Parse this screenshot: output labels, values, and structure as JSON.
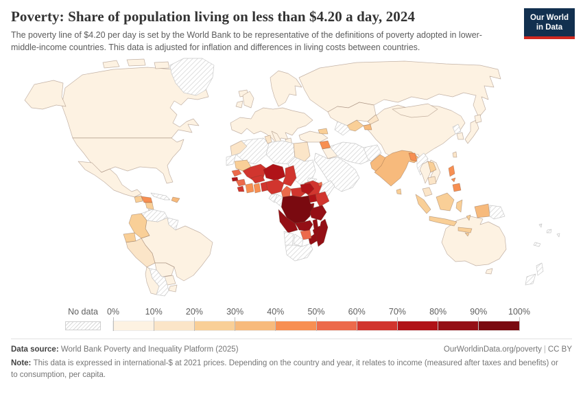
{
  "header": {
    "title": "Poverty: Share of population living on less than $4.20 a day, 2024",
    "subtitle": "The poverty line of $4.20 per day is set by the World Bank to be representative of the definitions of poverty adopted in lower-middle-income countries. This data is adjusted for inflation and differences in living costs between countries."
  },
  "logo": {
    "line1": "Our World",
    "line2": "in Data",
    "bg_color": "#12304F",
    "accent_color": "#D0281F"
  },
  "legend": {
    "no_data_label": "No data"
  },
  "chart_data": {
    "type": "choropleth",
    "title": "Poverty: Share of population living on less than $4.20 a day",
    "year": "2024",
    "unit": "share of population (%)",
    "legend_position": "bottom",
    "bins": [
      "0%",
      "10%",
      "20%",
      "30%",
      "40%",
      "50%",
      "60%",
      "70%",
      "80%",
      "90%",
      "100%"
    ],
    "bin_size_percent": 10,
    "colors": [
      "#FDF2E2",
      "#FBE5C8",
      "#F9CF97",
      "#F7BA7C",
      "#F78F52",
      "#EC6A4B",
      "#D1352E",
      "#B01318",
      "#940F15",
      "#7A0A10"
    ],
    "no_data_style": "diagonal-hatch",
    "regions": {
      "canada": 0,
      "united_states": 0,
      "greenland": "no_data",
      "iceland": 0,
      "mexico": 0,
      "guatemala": 2,
      "honduras": 4,
      "nicaragua": 2,
      "costa_rica_panama": 0,
      "cuba": "no_data",
      "hispaniola": 3,
      "venezuela": "no_data",
      "guyanas": "no_data",
      "colombia": 2,
      "ecuador": 2,
      "peru": 1,
      "brazil": 0,
      "bolivia": 0,
      "paraguay": 0,
      "uruguay": 0,
      "chile": 0,
      "argentina": "no_data",
      "scandinavia": 0,
      "united_kingdom": 0,
      "ireland": 0,
      "europe": 0,
      "italy": 0,
      "greece": 0,
      "russia": 0,
      "kazakhstan": 0,
      "uzbekistan": 2,
      "turkmenistan": "no_data",
      "kyrgyzstan": 1,
      "tajikistan": 3,
      "azerbaijan": 2,
      "turkey": 0,
      "syria": 4,
      "iraq": 0,
      "iran": "no_data",
      "afghanistan": "no_data",
      "arabian_peninsula": "no_data",
      "pakistan": 3,
      "india": 3,
      "bangladesh": 4,
      "sri_lanka": 2,
      "myanmar": "no_data",
      "china": 0,
      "mongolia": 0,
      "north_korea": "no_data",
      "south_korea": 0,
      "japan": 0,
      "taiwan": 1,
      "thailand": 0,
      "vietnam": 0,
      "laos": 2,
      "cambodia": 1,
      "malaysia": 1,
      "indonesia": 2,
      "papua_indonesia": 3,
      "papua_new_guinea": "no_data",
      "philippines": 4,
      "timor": 2,
      "australia": 0,
      "new_zealand": "no_data",
      "new_caledonia": "no_data",
      "pacific_islands": "no_data",
      "morocco": 1,
      "western_sahara": "no_data",
      "algeria": "no_data",
      "tunisia": 1,
      "libya": "no_data",
      "egypt": 1,
      "sudan": "no_data",
      "eritrea": "no_data",
      "ethiopia": 6,
      "djibouti": 5,
      "somalia": "no_data",
      "mauritania": 2,
      "mali": 6,
      "niger": 7,
      "chad": 6,
      "senegal": 5,
      "gambia_guinea_bissau": 7,
      "guinea": 5,
      "sierra_leone_liberia": 6,
      "cote_divoire": 4,
      "ghana": 4,
      "togo_benin": 6,
      "burkina_faso": 6,
      "nigeria": 6,
      "cameroon": 5,
      "central_african_republic": 6,
      "south_sudan": 7,
      "uganda": 7,
      "kenya": 6,
      "rwanda_burundi": 8,
      "democratic_republic_of_congo": 9,
      "congo": "no_data",
      "gabon": "no_data",
      "tanzania": 8,
      "angola": 8,
      "zambia": 8,
      "malawi": 8,
      "mozambique": 8,
      "zimbabwe": 5,
      "botswana": "no_data",
      "namibia": "no_data",
      "south_africa": "no_data",
      "madagascar": 8
    }
  },
  "footer": {
    "source_label": "Data source:",
    "source": "World Bank Poverty and Inequality Platform (2025)",
    "link": "OurWorldinData.org/poverty",
    "separator": "|",
    "license": "CC BY",
    "note_label": "Note:",
    "note": "This data is expressed in international-$ at 2021 prices. Depending on the country and year, it relates to income (measured after taxes and benefits) or to consumption, per capita."
  }
}
